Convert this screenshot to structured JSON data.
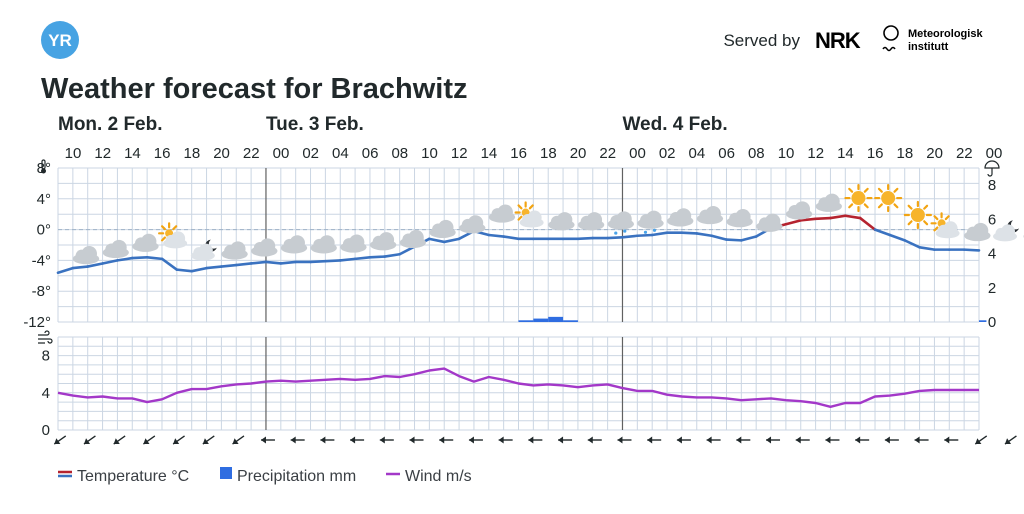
{
  "header": {
    "served_by": "Served by",
    "nrk": "NRK",
    "met_line1": "Meteorologisk",
    "met_line2": "institutt",
    "yr_logo": "YR"
  },
  "chart_data": {
    "type": "line",
    "title": "Weather forecast for Brachwitz",
    "days": [
      {
        "label": "Mon. 2 Feb.",
        "start_hour_index": 0
      },
      {
        "label": "Tue. 3 Feb.",
        "start_hour_index": 14
      },
      {
        "label": "Wed. 4 Feb.",
        "start_hour_index": 38
      }
    ],
    "hours": [
      10,
      11,
      12,
      13,
      14,
      15,
      16,
      17,
      18,
      19,
      20,
      21,
      22,
      23,
      0,
      1,
      2,
      3,
      4,
      5,
      6,
      7,
      8,
      9,
      10,
      11,
      12,
      13,
      14,
      15,
      16,
      17,
      18,
      19,
      20,
      21,
      22,
      23,
      0,
      1,
      2,
      3,
      4,
      5,
      6,
      7,
      8,
      9,
      10,
      11,
      12,
      13,
      14,
      15,
      16,
      17,
      18,
      19,
      20,
      21,
      22,
      23,
      0
    ],
    "hour_tick_labels": [
      "10",
      "12",
      "14",
      "16",
      "18",
      "20",
      "22",
      "00",
      "02",
      "04",
      "06",
      "08",
      "10",
      "12",
      "14",
      "16",
      "18",
      "20",
      "22",
      "00",
      "02",
      "04",
      "06",
      "08",
      "10",
      "12",
      "14",
      "16",
      "18",
      "20",
      "22",
      "00"
    ],
    "temperature": {
      "name": "Temperature °C",
      "ylim": [
        -12,
        8
      ],
      "ticks": [
        "8°",
        "4°",
        "0°",
        "-4°",
        "-8°",
        "-12°"
      ],
      "values": [
        -5.6,
        -5.0,
        -4.8,
        -4.4,
        -4.0,
        -3.7,
        -3.6,
        -3.8,
        -5.2,
        -5.4,
        -5.0,
        -4.8,
        -4.6,
        -4.4,
        -4.2,
        -4.4,
        -4.2,
        -4.2,
        -4.1,
        -4.0,
        -3.8,
        -3.6,
        -3.5,
        -3.2,
        -2.2,
        -1.2,
        -1.6,
        -1.2,
        -0.2,
        -0.7,
        -0.9,
        -1.2,
        -1.2,
        -1.2,
        -1.2,
        -1.2,
        -1.1,
        -1.1,
        -1.0,
        -0.8,
        -0.7,
        -0.4,
        -0.4,
        -0.5,
        -0.8,
        -1.3,
        -1.4,
        -0.9,
        0.2,
        0.7,
        1.2,
        1.4,
        1.5,
        1.8,
        1.5,
        0.0,
        -0.7,
        -1.4,
        -2.3,
        -2.6,
        -2.6,
        -2.6,
        -2.7
      ]
    },
    "precipitation": {
      "name": "Precipitation mm",
      "ylim": [
        0,
        9
      ],
      "ticks": [
        "8",
        "6",
        "4",
        "2",
        "0"
      ],
      "values": [
        0,
        0,
        0,
        0,
        0,
        0,
        0,
        0,
        0,
        0,
        0,
        0,
        0,
        0,
        0,
        0,
        0,
        0,
        0,
        0,
        0,
        0,
        0,
        0,
        0,
        0,
        0,
        0,
        0,
        0,
        0,
        0.1,
        0.2,
        0.3,
        0.1,
        0,
        0,
        0,
        0,
        0,
        0,
        0,
        0,
        0,
        0,
        0,
        0,
        0,
        0,
        0,
        0,
        0,
        0,
        0,
        0,
        0,
        0,
        0,
        0,
        0,
        0,
        0,
        0.1
      ]
    },
    "wind": {
      "name": "Wind m/s",
      "ylim": [
        0,
        10
      ],
      "ticks": [
        "8",
        "4",
        "0"
      ],
      "values": [
        4.0,
        3.7,
        3.5,
        3.6,
        3.4,
        3.4,
        3.0,
        3.3,
        4.0,
        4.4,
        4.4,
        4.7,
        4.9,
        5.0,
        5.2,
        5.3,
        5.2,
        5.3,
        5.4,
        5.5,
        5.4,
        5.5,
        5.8,
        5.7,
        6.0,
        6.4,
        6.6,
        5.8,
        5.2,
        5.7,
        5.4,
        5.0,
        4.8,
        4.9,
        4.8,
        4.6,
        4.8,
        4.9,
        4.5,
        4.2,
        4.2,
        3.8,
        3.6,
        3.5,
        3.5,
        3.4,
        3.2,
        3.3,
        3.4,
        3.2,
        3.1,
        2.9,
        2.5,
        2.9,
        2.9,
        3.6,
        3.7,
        3.9,
        4.2,
        4.3,
        4.3,
        4.3,
        4.3
      ]
    },
    "symbols": [
      "cloudy",
      "cloudy",
      "cloudy",
      "partly-cloudy-day",
      "partly-cloudy-night",
      "cloudy",
      "cloudy",
      "cloudy",
      "cloudy",
      "cloudy",
      "cloudy",
      "cloudy",
      "cloudy",
      "cloudy",
      "cloudy",
      "partly-cloudy-day",
      "cloudy",
      "cloudy",
      "snow-showers",
      "snow-showers",
      "cloudy",
      "cloudy",
      "cloudy",
      "cloudy",
      "cloudy",
      "cloudy",
      "clear-sky-day",
      "clear-sky-day",
      "clear-sky-day",
      "partly-cloudy-day",
      "cloudy",
      "partly-cloudy-night",
      "cloudy",
      "snow-showers"
    ],
    "wind_arrows": [
      "down-left",
      "down-left",
      "down-left",
      "down-left",
      "down-left",
      "down-left",
      "down-left",
      "left",
      "left",
      "left",
      "left",
      "left",
      "left",
      "left",
      "left",
      "left",
      "left",
      "left",
      "left",
      "left",
      "left",
      "left",
      "left",
      "left",
      "left",
      "left",
      "left",
      "left",
      "left",
      "left",
      "left",
      "down-left",
      "down-left",
      "down-left",
      "down-left",
      "down-left"
    ],
    "legend": [
      "Temperature °C",
      "Precipitation mm",
      "Wind m/s"
    ],
    "colors": {
      "temp_cold": "#3a72c0",
      "temp_warm": "#b5232f",
      "precip": "#2f6de1",
      "wind": "#a338c8",
      "grid": "#cbd6e3",
      "day_line": "#616161"
    }
  }
}
